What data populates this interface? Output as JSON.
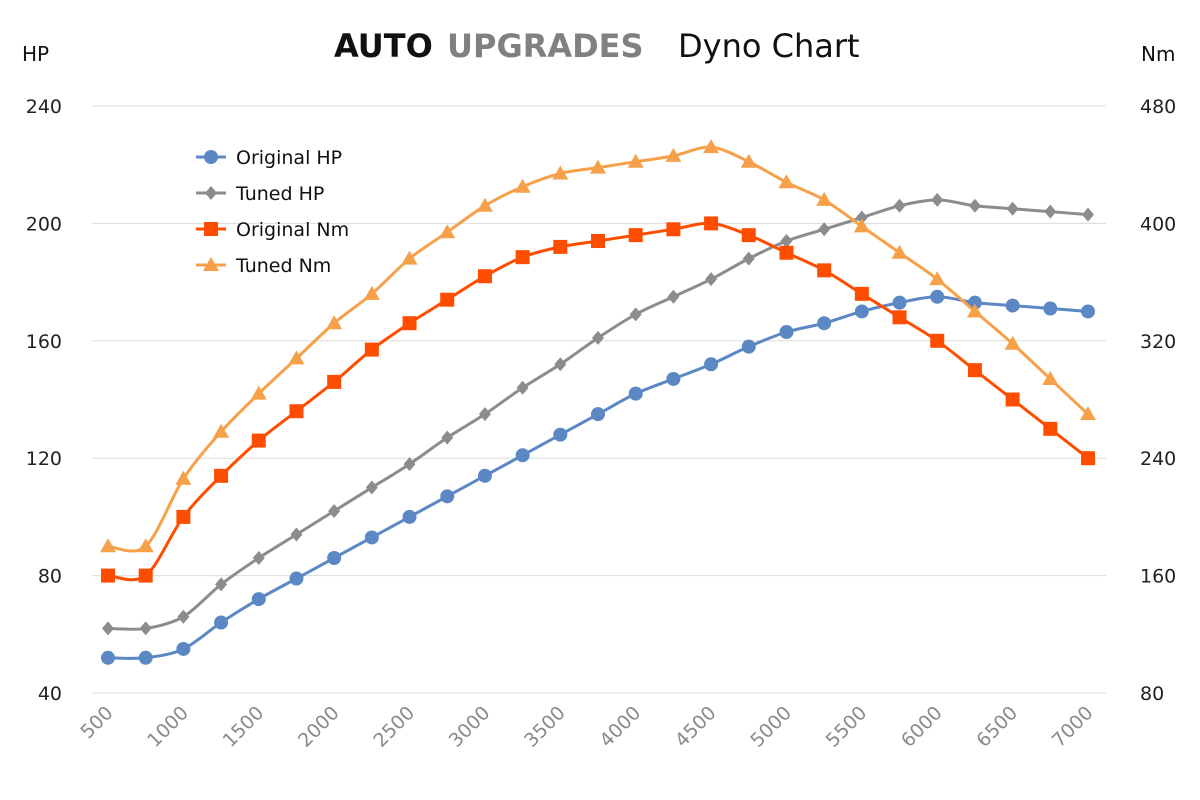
{
  "title": {
    "brand_primary": "AUTO",
    "brand_secondary": "UPGRADES",
    "text": "Dyno Chart"
  },
  "axes": {
    "left_unit": "HP",
    "right_unit": "Nm",
    "left_ticks": [
      "240",
      "200",
      "160",
      "120",
      "80",
      "40"
    ],
    "right_ticks": [
      "480",
      "400",
      "320",
      "240",
      "160",
      "80"
    ]
  },
  "legend": [
    "Original HP",
    "Tuned HP",
    "Original Nm",
    "Tuned Nm"
  ],
  "chart_data": {
    "type": "line",
    "title": "AUTO UPGRADES Dyno Chart",
    "xlabel": "",
    "ylabel": "HP",
    "y2label": "Nm",
    "x": [
      500,
      750,
      1000,
      1250,
      1500,
      1750,
      2000,
      2250,
      2500,
      2750,
      3000,
      3250,
      3500,
      3750,
      4000,
      4250,
      4500,
      4750,
      5000,
      5250,
      5500,
      5750,
      6000,
      6250,
      6500,
      6750,
      7000
    ],
    "x_tick_labels": [
      "500",
      "1000",
      "1500",
      "2000",
      "2500",
      "3000",
      "3500",
      "4000",
      "4500",
      "5000",
      "5500",
      "6000",
      "6500",
      "7000"
    ],
    "ylim": [
      40,
      240
    ],
    "y2lim": [
      80,
      480
    ],
    "grid": true,
    "legend_position": "top-left",
    "series": [
      {
        "name": "Original HP",
        "axis": "left",
        "marker": "circle",
        "color": "#5b87c4",
        "values": [
          52,
          52,
          55,
          64,
          72,
          79,
          86,
          93,
          100,
          107,
          114,
          121,
          128,
          135,
          142,
          147,
          152,
          158,
          163,
          166,
          170,
          173,
          175,
          173,
          172,
          171,
          170
        ]
      },
      {
        "name": "Tuned HP",
        "axis": "left",
        "marker": "diamond",
        "color": "#8c8c8c",
        "values": [
          62,
          62,
          66,
          77,
          86,
          94,
          102,
          110,
          118,
          127,
          135,
          144,
          152,
          161,
          169,
          175,
          181,
          188,
          194,
          198,
          202,
          206,
          208,
          206,
          205,
          204,
          203
        ]
      },
      {
        "name": "Original Nm",
        "axis": "right",
        "marker": "square",
        "color": "#ff4d00",
        "values": [
          160,
          160,
          200,
          228,
          252,
          272,
          292,
          314,
          332,
          348,
          364,
          377,
          384,
          388,
          392,
          396,
          400,
          392,
          380,
          368,
          352,
          336,
          320,
          300,
          280,
          260,
          240
        ]
      },
      {
        "name": "Tuned Nm",
        "axis": "right",
        "marker": "triangle",
        "color": "#f7a04a",
        "values": [
          180,
          180,
          226,
          258,
          284,
          308,
          332,
          352,
          376,
          394,
          412,
          425,
          434,
          438,
          442,
          446,
          452,
          442,
          428,
          416,
          398,
          380,
          362,
          340,
          318,
          294,
          270
        ]
      }
    ]
  }
}
